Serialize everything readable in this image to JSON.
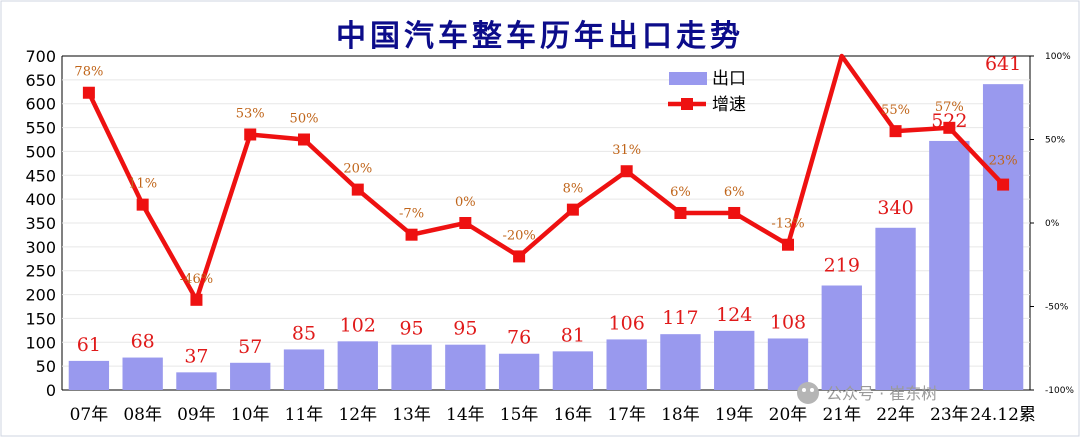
{
  "chart_data": {
    "type": "bar",
    "title": "中国汽车整车历年出口走势",
    "categories": [
      "07年",
      "08年",
      "09年",
      "10年",
      "11年",
      "12年",
      "13年",
      "14年",
      "15年",
      "16年",
      "17年",
      "18年",
      "19年",
      "20年",
      "21年",
      "22年",
      "23年",
      "24.12累"
    ],
    "series": [
      {
        "name": "出口",
        "type": "bar",
        "axis": "left",
        "color": "#9999ee",
        "values": [
          61,
          68,
          37,
          57,
          85,
          102,
          95,
          95,
          76,
          81,
          106,
          117,
          124,
          108,
          219,
          340,
          522,
          641
        ],
        "labels": [
          "61",
          "68",
          "37",
          "57",
          "85",
          "102",
          "95",
          "95",
          "76",
          "81",
          "106",
          "117",
          "124",
          "108",
          "219",
          "340",
          "522",
          "641"
        ]
      },
      {
        "name": "增速",
        "type": "line",
        "axis": "right",
        "color": "#ee1111",
        "values": [
          78,
          11,
          -46,
          53,
          50,
          20,
          -7,
          0,
          -20,
          8,
          31,
          6,
          6,
          -13,
          100,
          55,
          57,
          23
        ],
        "labels": [
          "78%",
          "11%",
          "-46%",
          "53%",
          "50%",
          "20%",
          "-7%",
          "0%",
          "-20%",
          "8%",
          "31%",
          "6%",
          "6%",
          "-13%",
          "",
          "55%",
          "57%",
          "23%"
        ]
      }
    ],
    "y_axis": {
      "min": 0,
      "max": 700,
      "step": 50,
      "ticks": [
        "0",
        "50",
        "100",
        "150",
        "200",
        "250",
        "300",
        "350",
        "400",
        "450",
        "500",
        "550",
        "600",
        "650",
        "700"
      ]
    },
    "y2_axis": {
      "min": -100,
      "max": 100,
      "ticks": [
        "-100%",
        "-50%",
        "0%",
        "50%",
        "100%"
      ]
    },
    "legend": {
      "position": "top-right",
      "entries": [
        "出口",
        "增速"
      ]
    }
  },
  "watermark": {
    "text": "公众号 · 崔东树"
  }
}
